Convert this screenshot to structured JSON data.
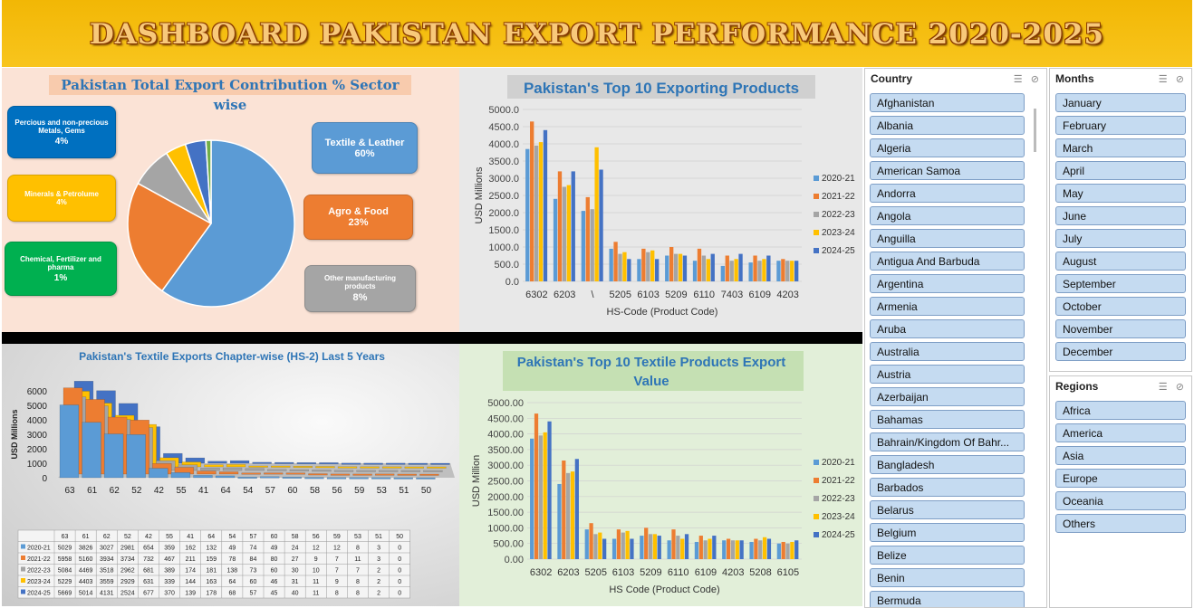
{
  "header": {
    "title": "DASHBOARD PAKISTAN EXPORT PERFORMANCE 2020-2025"
  },
  "colors": {
    "s2021": "#5b9bd5",
    "s2122": "#ed7d31",
    "s2223": "#a5a5a5",
    "s2324": "#ffc000",
    "s2425": "#4472c4"
  },
  "pie": {
    "title": "Pakistan Total Export Contribution % Sector wise",
    "boxes": {
      "metals": {
        "label": "Percious and non-precious Metals, Gems",
        "value": "4%"
      },
      "minerals": {
        "label": "Minerals & Petrolume",
        "value": "4%"
      },
      "chemical": {
        "label": "Chemical, Fertilizer and pharma",
        "value": "1%"
      },
      "textile": {
        "label": "Textile & Leather",
        "value": "60%"
      },
      "agro": {
        "label": "Agro & Food",
        "value": "23%"
      },
      "other": {
        "label": "Other manufacturing products",
        "value": "8%"
      }
    }
  },
  "chart_data": [
    {
      "type": "pie",
      "title": "Pakistan Total Export Contribution % Sector wise",
      "slices": [
        {
          "name": "Textile & Leather",
          "value": 60,
          "color": "#5b9bd5"
        },
        {
          "name": "Agro & Food",
          "value": 23,
          "color": "#ed7d31"
        },
        {
          "name": "Other manufacturing products",
          "value": 8,
          "color": "#a5a5a5"
        },
        {
          "name": "Minerals & Petrolume",
          "value": 4,
          "color": "#ffc000"
        },
        {
          "name": "Percious and non-precious Metals, Gems",
          "value": 4,
          "color": "#4472c4"
        },
        {
          "name": "Chemical, Fertilizer and pharma",
          "value": 1,
          "color": "#70ad47"
        }
      ]
    },
    {
      "type": "bar",
      "title": "Pakistan's Top 10 Exporting Products",
      "xlabel": "HS-Code (Product Code)",
      "ylabel": "USD Millions",
      "ylim": [
        0,
        5000
      ],
      "yticks": [
        "5000.0",
        "4500.0",
        "4000.0",
        "3500.0",
        "3000.0",
        "2500.0",
        "2000.0",
        "1500.0",
        "1000.0",
        "500.0",
        "0.0"
      ],
      "categories": [
        "6302",
        "6203",
        "\\",
        "5205",
        "6103",
        "5209",
        "6110",
        "7403",
        "6109",
        "4203"
      ],
      "series": [
        {
          "name": "2020-21",
          "values": [
            3850,
            2400,
            2050,
            950,
            650,
            750,
            600,
            450,
            550,
            600
          ]
        },
        {
          "name": "2021-22",
          "values": [
            4650,
            3200,
            2450,
            1150,
            950,
            1000,
            950,
            750,
            750,
            650
          ]
        },
        {
          "name": "2022-23",
          "values": [
            3950,
            2750,
            2100,
            800,
            850,
            800,
            750,
            600,
            600,
            600
          ]
        },
        {
          "name": "2023-24",
          "values": [
            4050,
            2800,
            3900,
            850,
            900,
            800,
            650,
            650,
            650,
            600
          ]
        },
        {
          "name": "2024-25",
          "values": [
            4400,
            3200,
            3250,
            650,
            650,
            750,
            800,
            800,
            750,
            600
          ]
        }
      ]
    },
    {
      "type": "bar",
      "title": "Pakistan's Textile Exports Chapter-wise (HS-2) Last 5 Years",
      "ylabel": "USD Millions",
      "ylim": [
        0,
        6000
      ],
      "yticks": [
        "6000",
        "5000",
        "4000",
        "3000",
        "2000",
        "1000",
        "0"
      ],
      "categories": [
        "63",
        "61",
        "62",
        "52",
        "42",
        "55",
        "41",
        "64",
        "54",
        "57",
        "60",
        "58",
        "56",
        "59",
        "53",
        "51",
        "50"
      ],
      "series": [
        {
          "name": "2020-21",
          "values": [
            5029,
            3826,
            3027,
            2981,
            654,
            359,
            162,
            132,
            49,
            74,
            49,
            24,
            12,
            12,
            8,
            3,
            0
          ]
        },
        {
          "name": "2021-22",
          "values": [
            5958,
            5160,
            3934,
            3734,
            732,
            467,
            211,
            159,
            78,
            84,
            80,
            27,
            9,
            7,
            11,
            3,
            0
          ]
        },
        {
          "name": "2022-23",
          "values": [
            5084,
            4469,
            3518,
            2962,
            681,
            389,
            174,
            181,
            138,
            73,
            60,
            30,
            10,
            7,
            7,
            2,
            0
          ]
        },
        {
          "name": "2023-24",
          "values": [
            5229,
            4403,
            3559,
            2929,
            631,
            339,
            144,
            163,
            64,
            60,
            46,
            31,
            11,
            9,
            8,
            2,
            0
          ]
        },
        {
          "name": "2024-25",
          "values": [
            5669,
            5014,
            4131,
            2524,
            677,
            370,
            139,
            178,
            68,
            57,
            45,
            40,
            11,
            8,
            8,
            2,
            0
          ]
        }
      ]
    },
    {
      "type": "bar",
      "title": "Pakistan's Top 10 Textile Products Export Value",
      "xlabel": "HS Code (Product Code)",
      "ylabel": "USD Million",
      "ylim": [
        0,
        5000
      ],
      "yticks": [
        "5000.00",
        "4500.00",
        "4000.00",
        "3500.00",
        "3000.00",
        "2500.00",
        "2000.00",
        "1500.00",
        "1000.00",
        "500.00",
        "0.00"
      ],
      "categories": [
        "6302",
        "6203",
        "5205",
        "6103",
        "5209",
        "6110",
        "6109",
        "4203",
        "5208",
        "6105"
      ],
      "series": [
        {
          "name": "2020-21",
          "values": [
            3850,
            2400,
            950,
            650,
            750,
            600,
            550,
            600,
            550,
            500
          ]
        },
        {
          "name": "2021-22",
          "values": [
            4650,
            3150,
            1150,
            950,
            1000,
            950,
            750,
            650,
            650,
            550
          ]
        },
        {
          "name": "2022-23",
          "values": [
            3950,
            2750,
            800,
            850,
            800,
            750,
            600,
            600,
            600,
            500
          ]
        },
        {
          "name": "2023-24",
          "values": [
            4050,
            2800,
            850,
            900,
            800,
            650,
            650,
            600,
            700,
            550
          ]
        },
        {
          "name": "2024-25",
          "values": [
            4400,
            3200,
            650,
            650,
            750,
            800,
            750,
            600,
            650,
            600
          ]
        }
      ]
    }
  ],
  "slicers": {
    "country": {
      "title": "Country",
      "items": [
        "Afghanistan",
        "Albania",
        "Algeria",
        "American Samoa",
        "Andorra",
        "Angola",
        "Anguilla",
        "Antigua And Barbuda",
        "Argentina",
        "Armenia",
        "Aruba",
        "Australia",
        "Austria",
        "Azerbaijan",
        "Bahamas",
        "Bahrain/Kingdom Of Bahr...",
        "Bangladesh",
        "Barbados",
        "Belarus",
        "Belgium",
        "Belize",
        "Benin",
        "Bermuda"
      ]
    },
    "months": {
      "title": "Months",
      "items": [
        "January",
        "February",
        "March",
        "April",
        "May",
        "June",
        "July",
        "August",
        "September",
        "October",
        "November",
        "December"
      ]
    },
    "regions": {
      "title": "Regions",
      "items": [
        "Africa",
        "America",
        "Asia",
        "Europe",
        "Oceania",
        "Others"
      ]
    }
  }
}
